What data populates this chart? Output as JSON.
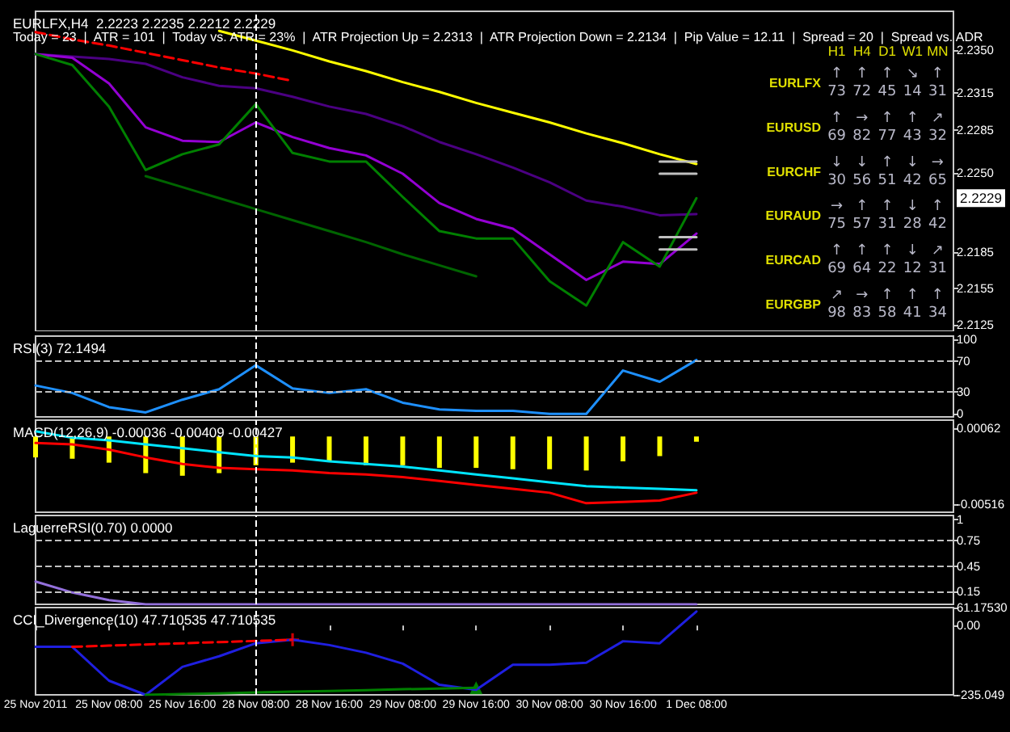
{
  "chart_data": [
    {
      "type": "line",
      "title": "EURLFX,H4  2.2223 2.2235 2.2212 2.2229",
      "subtitle": "Today = 23  |  ATR = 101  |  Today vs. ATR = 23%  |  ATR Projection Up = 2.2313  |  ATR Projection Down = 2.2134  |  Pip Value = 12.11  |  Spread = 20  |  Spread vs. ADR",
      "categories": [
        "25 Nov 2011",
        null,
        "25 Nov 08:00",
        null,
        "25 Nov 16:00",
        null,
        "28 Nov 08:00",
        null,
        "28 Nov 16:00",
        null,
        "29 Nov 08:00",
        null,
        "29 Nov 16:00",
        null,
        "30 Nov 08:00",
        null,
        "30 Nov 16:00",
        null,
        "1 Dec 08:00",
        null,
        null,
        null,
        null,
        null,
        null,
        null
      ],
      "tick_labels": "y",
      "ylim": [
        2.212,
        2.2382
      ],
      "yticks": [
        {
          "value": 2.235,
          "label": "2.2350"
        },
        2.2315,
        2.2285,
        {
          "value": 2.225,
          "label": "2.2250"
        },
        2.2185,
        2.2155,
        2.2125
      ],
      "marker": "none",
      "series": [
        {
          "color": "#ffff00",
          "values": [
            null,
            null,
            null,
            null,
            null,
            2.2366,
            2.2358,
            2.235,
            2.2341,
            2.2333,
            2.2324,
            2.2316,
            2.2307,
            2.2299,
            2.2291,
            2.2282,
            2.2274,
            2.2265,
            2.2257,
            null,
            null,
            null,
            null,
            null,
            null,
            null
          ]
        },
        {
          "color": "#ff0000",
          "line_style": "dashed",
          "values": [
            2.2365,
            2.2359,
            2.2354,
            2.2348,
            2.2342,
            2.2336,
            2.2331,
            2.2325,
            null,
            null,
            null,
            null,
            null,
            null,
            null,
            null,
            null,
            null,
            null,
            null,
            null,
            null,
            null,
            null,
            null,
            null
          ]
        },
        {
          "color": "#4b0082",
          "values": [
            2.2347,
            2.2345,
            2.2343,
            2.2339,
            2.2328,
            2.2321,
            2.2319,
            2.2312,
            2.2304,
            2.2298,
            2.2288,
            2.2275,
            2.2265,
            2.2254,
            2.2242,
            2.2227,
            2.2222,
            2.2215,
            2.2216,
            null,
            null,
            null,
            null,
            null,
            null,
            null
          ]
        },
        {
          "color": "#9400d3",
          "values": [
            2.2347,
            2.2344,
            2.2323,
            2.2287,
            2.2276,
            2.2275,
            2.2291,
            2.2279,
            2.227,
            2.2264,
            2.2249,
            2.2225,
            2.2212,
            2.2204,
            2.2183,
            2.2162,
            2.2177,
            2.2175,
            2.22,
            null,
            null,
            null,
            null,
            null,
            null,
            null
          ]
        },
        {
          "color": "#006400",
          "values": [
            null,
            null,
            null,
            2.2247,
            2.2238,
            2.2229,
            2.222,
            2.2211,
            2.2202,
            2.2193,
            2.2183,
            2.2174,
            2.2165,
            null,
            null,
            null,
            null,
            null,
            null,
            null,
            null,
            null,
            null,
            null,
            null,
            null
          ]
        },
        {
          "color": "#008000",
          "values": [
            2.2347,
            2.2338,
            2.2304,
            2.2252,
            2.2265,
            2.2273,
            2.2306,
            2.2266,
            2.2259,
            2.2259,
            2.223,
            2.2202,
            2.2196,
            2.2196,
            2.2161,
            2.2141,
            2.2193,
            2.2173,
            2.2229,
            null,
            null,
            null,
            null,
            null,
            null,
            null
          ]
        },
        {
          "color": "#c0c0c0",
          "values": [
            null,
            null,
            null,
            null,
            null,
            null,
            null,
            null,
            null,
            null,
            null,
            null,
            null,
            null,
            null,
            null,
            null,
            2.2259,
            2.2259,
            null,
            null,
            null,
            null,
            null,
            null,
            null
          ]
        },
        {
          "color": "#c0c0c0",
          "values": [
            null,
            null,
            null,
            null,
            null,
            null,
            null,
            null,
            null,
            null,
            null,
            null,
            null,
            null,
            null,
            null,
            null,
            2.2249,
            2.2249,
            null,
            null,
            null,
            null,
            null,
            null,
            null
          ]
        },
        {
          "color": "#c0c0c0",
          "values": [
            null,
            null,
            null,
            null,
            null,
            null,
            null,
            null,
            null,
            null,
            null,
            null,
            null,
            null,
            null,
            null,
            null,
            2.2197,
            2.2197,
            null,
            null,
            null,
            null,
            null,
            null,
            null
          ]
        },
        {
          "color": "#c0c0c0",
          "values": [
            null,
            null,
            null,
            null,
            null,
            null,
            null,
            null,
            null,
            null,
            null,
            null,
            null,
            null,
            null,
            null,
            null,
            2.2187,
            2.2187,
            null,
            null,
            null,
            null,
            null,
            null,
            null
          ]
        }
      ],
      "ref_lines": [
        {
          "axis": "x",
          "value": "28 Nov 08:00",
          "color": "#ffffff",
          "line_style": "dashed"
        }
      ],
      "annotations": [
        {
          "text": "2.2229",
          "y": 2.2229
        }
      ]
    },
    {
      "type": "heatmap",
      "categories": [
        "H1",
        "H4",
        "D1",
        "W1",
        "MN"
      ],
      "y_categories": [
        "EURLFX",
        "EURUSD",
        "EURCHF",
        "EURAUD",
        "EURCAD",
        "EURGBP"
      ],
      "cells": [
        [
          73,
          72,
          45,
          14,
          31
        ],
        [
          69,
          82,
          77,
          43,
          32
        ],
        [
          30,
          56,
          51,
          42,
          65
        ],
        [
          75,
          57,
          31,
          28,
          42
        ],
        [
          69,
          64,
          22,
          12,
          31
        ],
        [
          98,
          83,
          58,
          41,
          34
        ]
      ],
      "cell_labels": [
        [
          "↑\n73",
          "↑\n72",
          "↑\n45",
          "↘\n14",
          "↑\n31"
        ],
        [
          "↑\n69",
          "→\n82",
          "↑\n77",
          "↑\n43",
          "↗\n32"
        ],
        [
          "↓\n30",
          "↓\n56",
          "↑\n51",
          "↓\n42",
          "→\n65"
        ],
        [
          "→\n75",
          "↑\n57",
          "↑\n31",
          "↓\n28",
          "↑\n42"
        ],
        [
          "↑\n69",
          "↑\n64",
          "↑\n22",
          "↓\n12",
          "↗\n31"
        ],
        [
          "↗\n98",
          "→\n83",
          "↑\n58",
          "↑\n41",
          "↑\n34"
        ]
      ]
    },
    {
      "type": "line",
      "title": "RSI(3) 72.1494",
      "categories": [
        "25 Nov 2011",
        null,
        "25 Nov 08:00",
        null,
        "25 Nov 16:00",
        null,
        "28 Nov 08:00",
        null,
        "28 Nov 16:00",
        null,
        "29 Nov 08:00",
        null,
        "29 Nov 16:00",
        null,
        "30 Nov 08:00",
        null,
        "30 Nov 16:00",
        null,
        "1 Dec 08:00",
        null,
        null,
        null,
        null,
        null,
        null,
        null
      ],
      "tick_labels": "y",
      "ylim": [
        -4,
        104
      ],
      "yticks": [
        100,
        70,
        30,
        0
      ],
      "marker": "none",
      "series": [
        {
          "color": "#1e90ff",
          "values": [
            38,
            28,
            9,
            2,
            19,
            33,
            65,
            34,
            28,
            33,
            15,
            6,
            4,
            4,
            0,
            0,
            58,
            43,
            72,
            null,
            null,
            null,
            null,
            null,
            null,
            null
          ]
        }
      ],
      "ref_lines": [
        {
          "axis": "y",
          "value": 70,
          "color": "#c0c0c0",
          "line_style": "dashed"
        },
        {
          "axis": "y",
          "value": 30,
          "color": "#c0c0c0",
          "line_style": "dashed"
        },
        {
          "axis": "x",
          "value": "28 Nov 08:00",
          "color": "#ffffff",
          "line_style": "dashed"
        }
      ]
    },
    {
      "type": "bar",
      "title": "MACD(12,26,9) -0.00036 -0.00409 -0.00427",
      "categories": [
        "25 Nov 2011",
        null,
        "25 Nov 08:00",
        null,
        "25 Nov 16:00",
        null,
        "28 Nov 08:00",
        null,
        "28 Nov 16:00",
        null,
        "29 Nov 08:00",
        null,
        "29 Nov 16:00",
        null,
        "30 Nov 08:00",
        null,
        "30 Nov 16:00",
        null,
        "1 Dec 08:00",
        null,
        null,
        null,
        null,
        null,
        null,
        null
      ],
      "tick_labels": "y",
      "ylim": [
        -0.00579,
        0.00125
      ],
      "yticks": [
        0.00062,
        -0.00516
      ],
      "marker": "none",
      "series": [
        {
          "color": "#ffff00",
          "values": [
            -0.0016,
            -0.0017,
            -0.002,
            -0.0028,
            -0.003,
            -0.0028,
            -0.0022,
            -0.002,
            -0.0019,
            -0.0022,
            -0.0022,
            -0.0024,
            -0.0024,
            -0.0025,
            -0.0025,
            -0.0026,
            -0.0019,
            -0.0015,
            -0.0004,
            null,
            null,
            null,
            null,
            null,
            null,
            null
          ]
        },
        {
          "type": "line",
          "color": "#00e5ff",
          "values": [
            0.0004,
            -0.0001,
            -0.0003,
            -0.0006,
            -0.0009,
            -0.0012,
            -0.0015,
            -0.0016,
            -0.0019,
            -0.0021,
            -0.0023,
            -0.0026,
            -0.0029,
            -0.0032,
            -0.0035,
            -0.0038,
            -0.0039,
            -0.004,
            -0.0041,
            null,
            null,
            null,
            null,
            null,
            null,
            null
          ]
        },
        {
          "type": "line",
          "color": "#ff0000",
          "values": [
            -0.0005,
            -0.0006,
            -0.001,
            -0.0016,
            -0.0021,
            -0.0024,
            -0.0025,
            -0.0026,
            -0.0028,
            -0.0029,
            -0.0031,
            -0.0034,
            -0.0037,
            -0.004,
            -0.0043,
            -0.0051,
            -0.005,
            -0.0049,
            -0.0043,
            null,
            null,
            null,
            null,
            null,
            null,
            null
          ]
        }
      ],
      "ref_lines": [
        {
          "axis": "x",
          "value": "28 Nov 08:00",
          "color": "#ffffff",
          "line_style": "dashed"
        }
      ]
    },
    {
      "type": "line",
      "title": "LaguerreRSI(0.70) 0.0000",
      "categories": [
        "25 Nov 2011",
        null,
        "25 Nov 08:00",
        null,
        "25 Nov 16:00",
        null,
        "28 Nov 08:00",
        null,
        "28 Nov 16:00",
        null,
        "29 Nov 08:00",
        null,
        "29 Nov 16:00",
        null,
        "30 Nov 08:00",
        null,
        "30 Nov 16:00",
        null,
        "1 Dec 08:00",
        null,
        null,
        null,
        null,
        null,
        null,
        null
      ],
      "tick_labels": "y",
      "ylim": [
        0,
        1.05
      ],
      "yticks": [
        1,
        0.75,
        0.45,
        0.15
      ],
      "marker": "none",
      "series": [
        {
          "color": "#9370db",
          "values": [
            0.27,
            0.14,
            0.05,
            0,
            0,
            0,
            0,
            0,
            0,
            0,
            0,
            0,
            0,
            0,
            0,
            0,
            0,
            0,
            0,
            null,
            null,
            null,
            null,
            null,
            null,
            null
          ]
        }
      ],
      "ref_lines": [
        {
          "axis": "y",
          "value": 0.75,
          "color": "#c0c0c0",
          "line_style": "dashed"
        },
        {
          "axis": "y",
          "value": 0.45,
          "color": "#c0c0c0",
          "line_style": "dashed"
        },
        {
          "axis": "y",
          "value": 0.15,
          "color": "#c0c0c0",
          "line_style": "dashed"
        },
        {
          "axis": "x",
          "value": "28 Nov 08:00",
          "color": "#ffffff",
          "line_style": "dashed"
        }
      ]
    },
    {
      "type": "line",
      "title": "CCI_Divergence(10) 47.710535 47.710535",
      "categories": [
        "25 Nov 2011",
        null,
        "25 Nov 08:00",
        null,
        "25 Nov 16:00",
        null,
        "28 Nov 08:00",
        null,
        "28 Nov 16:00",
        null,
        "29 Nov 08:00",
        null,
        "29 Nov 16:00",
        null,
        "30 Nov 08:00",
        null,
        "30 Nov 16:00",
        null,
        "1 Dec 08:00",
        null,
        null,
        null,
        null,
        null,
        null,
        null
      ],
      "ylim": [
        -235.049,
        61.1753
      ],
      "yticks": [
        {
          "value": 61.1753,
          "label": "61.17530"
        },
        {
          "value": 0,
          "label": "0.00"
        },
        -235.049
      ],
      "marker": "none",
      "series": [
        {
          "color": "#1f1fe0",
          "values": [
            -72,
            -72,
            -187,
            -235,
            -140,
            -104,
            -60,
            -48,
            -66,
            -92,
            -129,
            -201,
            -218,
            -133,
            -133,
            -126,
            -53,
            -60,
            48,
            null,
            null,
            null,
            null,
            null,
            null,
            null
          ]
        },
        {
          "color": "#ff0000",
          "line_style": "dashed",
          "values": [
            null,
            -72,
            -68,
            -64,
            -60,
            -56,
            -52,
            -48,
            null,
            null,
            null,
            null,
            null,
            null,
            null,
            null,
            null,
            null,
            null,
            null,
            null,
            null,
            null,
            null,
            null,
            null
          ]
        },
        {
          "color": "#008000",
          "values": [
            null,
            null,
            null,
            -235,
            -232,
            -230,
            -227,
            -224,
            -222,
            -219,
            -216,
            -214,
            -211,
            null,
            null,
            null,
            null,
            null,
            null,
            null,
            null,
            null,
            null,
            null,
            null,
            null
          ]
        },
        {
          "type": "scatter",
          "marker": "cross",
          "color": "#ff0000",
          "values": [
            null,
            null,
            null,
            null,
            null,
            null,
            null,
            -48,
            null,
            null,
            null,
            null,
            null,
            null,
            null,
            null,
            null,
            null,
            null,
            null,
            null,
            null,
            null,
            null,
            null,
            null
          ]
        },
        {
          "type": "scatter",
          "marker": "triangle",
          "color": "#00a000",
          "values": [
            null,
            null,
            null,
            null,
            null,
            null,
            null,
            null,
            null,
            null,
            null,
            null,
            -211,
            null,
            null,
            null,
            null,
            null,
            null,
            null,
            null,
            null,
            null,
            null,
            null,
            null
          ]
        }
      ],
      "ref_lines": [
        {
          "axis": "x",
          "value": "28 Nov 08:00",
          "color": "#ffffff",
          "line_style": "dashed"
        }
      ]
    }
  ]
}
